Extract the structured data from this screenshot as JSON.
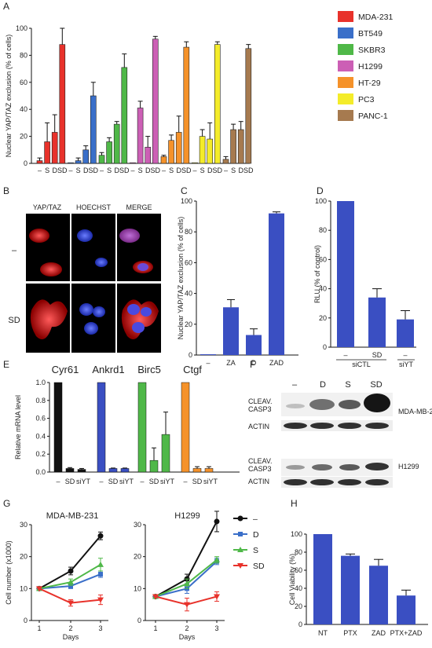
{
  "panel_labels": [
    "A",
    "B",
    "C",
    "D",
    "E",
    "F",
    "G",
    "H"
  ],
  "colors": {
    "MDA-231": "#e8322b",
    "BT549": "#3a6fc9",
    "SKBR3": "#4fb848",
    "H1299": "#cc5fb5",
    "HT-29": "#f5922a",
    "PC3": "#f4ec2a",
    "PANC-1": "#a67a4f",
    "blue": "#3a4fc2",
    "black": "#111111",
    "grey_line": "#333333"
  },
  "chart_data": [
    {
      "id": "A",
      "type": "bar",
      "ylabel": "Nuclear YAP/TAZ exclusion (% of cells)",
      "ylim": [
        0,
        100
      ],
      "yticks": [
        "0",
        "20",
        "40",
        "60",
        "80",
        "100"
      ],
      "categories": [
        "–",
        "S",
        "D",
        "SD"
      ],
      "series": [
        {
          "name": "MDA-231",
          "values": [
            2,
            16,
            23,
            88
          ],
          "errors": [
            2,
            14,
            13,
            12
          ]
        },
        {
          "name": "BT549",
          "values": [
            0.5,
            2,
            10,
            50
          ],
          "errors": [
            0.5,
            2,
            3,
            10
          ]
        },
        {
          "name": "SKBR3",
          "values": [
            6,
            16,
            29,
            71
          ],
          "errors": [
            2,
            3,
            2,
            10
          ]
        },
        {
          "name": "H1299",
          "values": [
            0.5,
            41,
            12,
            92
          ],
          "errors": [
            0.5,
            5,
            8,
            2
          ]
        },
        {
          "name": "HT-29",
          "values": [
            5,
            17,
            23,
            86
          ],
          "errors": [
            1,
            4,
            12,
            4
          ]
        },
        {
          "name": "PC3",
          "values": [
            0.5,
            20,
            18,
            88
          ],
          "errors": [
            0.5,
            5,
            12,
            2
          ]
        },
        {
          "name": "PANC-1",
          "values": [
            3,
            25,
            25,
            85
          ],
          "errors": [
            2,
            4,
            6,
            3
          ]
        }
      ]
    },
    {
      "id": "C",
      "type": "bar",
      "ylabel": "Nuclear YAP/TAZ exclusion (% of cells)",
      "ylim": [
        0,
        100
      ],
      "yticks": [
        "0",
        "20",
        "40",
        "60",
        "80",
        "100"
      ],
      "categories": [
        "–",
        "ZA",
        "D",
        "ZAD"
      ],
      "values": [
        0.5,
        31,
        13,
        92
      ],
      "errors": [
        0.5,
        5,
        4,
        1
      ]
    },
    {
      "id": "D",
      "type": "bar",
      "ylabel": "RLU (% of control)",
      "ylim": [
        0,
        100
      ],
      "yticks": [
        "0",
        "20",
        "40",
        "60",
        "80",
        "100"
      ],
      "categories": [
        "–",
        "SD",
        "–"
      ],
      "group_labels": [
        "siCTL",
        "siYT"
      ],
      "values": [
        100,
        34,
        19
      ],
      "errors": [
        0,
        6,
        6
      ]
    },
    {
      "id": "E",
      "type": "bar",
      "ylabel": "Relative mRNA level",
      "ylim": [
        0,
        1.0
      ],
      "yticks": [
        "0.0",
        "0.2",
        "0.4",
        "0.6",
        "0.8",
        "1.0"
      ],
      "categories": [
        "–",
        "SD",
        "siYT"
      ],
      "series": [
        {
          "name": "Cyr61",
          "values": [
            1.0,
            0.04,
            0.03
          ],
          "errors": [
            0,
            0.01,
            0.01
          ]
        },
        {
          "name": "Ankrd1",
          "values": [
            1.0,
            0.04,
            0.04
          ],
          "errors": [
            0,
            0.005,
            0.005
          ]
        },
        {
          "name": "Birc5",
          "values": [
            1.0,
            0.13,
            0.42
          ],
          "errors": [
            0,
            0.14,
            0.25
          ]
        },
        {
          "name": "Ctgf",
          "values": [
            1.0,
            0.04,
            0.04
          ],
          "errors": [
            0,
            0.02,
            0.02
          ]
        }
      ]
    },
    {
      "id": "G",
      "type": "line",
      "ylabel": "Cell number (x1000)",
      "xlabel": "Days",
      "x": [
        1,
        2,
        3
      ],
      "ylim": [
        0,
        30
      ],
      "yticks": [
        "0",
        "10",
        "20",
        "30"
      ],
      "xticks": [
        "1",
        "2",
        "3"
      ],
      "subplots": [
        {
          "title": "MDA-MB-231",
          "series": [
            {
              "name": "–",
              "values": [
                10,
                15.5,
                26.5
              ],
              "errors": [
                0.5,
                1.2,
                1.2
              ]
            },
            {
              "name": "D",
              "values": [
                10,
                10.8,
                14.5
              ],
              "errors": [
                0.5,
                0.8,
                1.0
              ]
            },
            {
              "name": "S",
              "values": [
                10,
                12,
                17.5
              ],
              "errors": [
                0.5,
                1.0,
                2.0
              ]
            },
            {
              "name": "SD",
              "values": [
                10,
                5.5,
                6.5
              ],
              "errors": [
                0.5,
                1.0,
                1.5
              ]
            }
          ]
        },
        {
          "title": "H1299",
          "series": [
            {
              "name": "–",
              "values": [
                7.5,
                13,
                31
              ],
              "errors": [
                0.5,
                1.5,
                3.2
              ]
            },
            {
              "name": "D",
              "values": [
                7.5,
                10,
                18.5
              ],
              "errors": [
                0.5,
                1.5,
                1.0
              ]
            },
            {
              "name": "S",
              "values": [
                7.5,
                11.5,
                19
              ],
              "errors": [
                0.5,
                1.5,
                1.0
              ]
            },
            {
              "name": "SD",
              "values": [
                7.5,
                5,
                7.5
              ],
              "errors": [
                0.5,
                2.0,
                1.5
              ]
            }
          ]
        }
      ],
      "legend": [
        "–",
        "D",
        "S",
        "SD"
      ],
      "legend_colors": [
        "#111111",
        "#3a6fc9",
        "#4fb848",
        "#e8322b"
      ]
    },
    {
      "id": "H",
      "type": "bar",
      "ylabel": "Cell Viability (%)",
      "ylim": [
        0,
        100
      ],
      "yticks": [
        "0",
        "20",
        "40",
        "60",
        "80",
        "100"
      ],
      "categories": [
        "NT",
        "PTX",
        "ZAD",
        "PTX+ZAD"
      ],
      "values": [
        100,
        76,
        65,
        32
      ],
      "errors": [
        0,
        2,
        7,
        6
      ]
    }
  ],
  "panel_b": {
    "col_headers": [
      "YAP/TAZ",
      "HOECHST",
      "MERGE"
    ],
    "row_labels": [
      "–",
      "SD"
    ]
  },
  "panel_f": {
    "lane_headers": [
      "–",
      "D",
      "S",
      "SD"
    ],
    "blot_labels": [
      "CLEAV.",
      "CASP3",
      "ACTIN",
      "CLEAV.",
      "CASP3",
      "ACTIN"
    ],
    "cell_lines": [
      "MDA-MB-231",
      "H1299"
    ]
  }
}
